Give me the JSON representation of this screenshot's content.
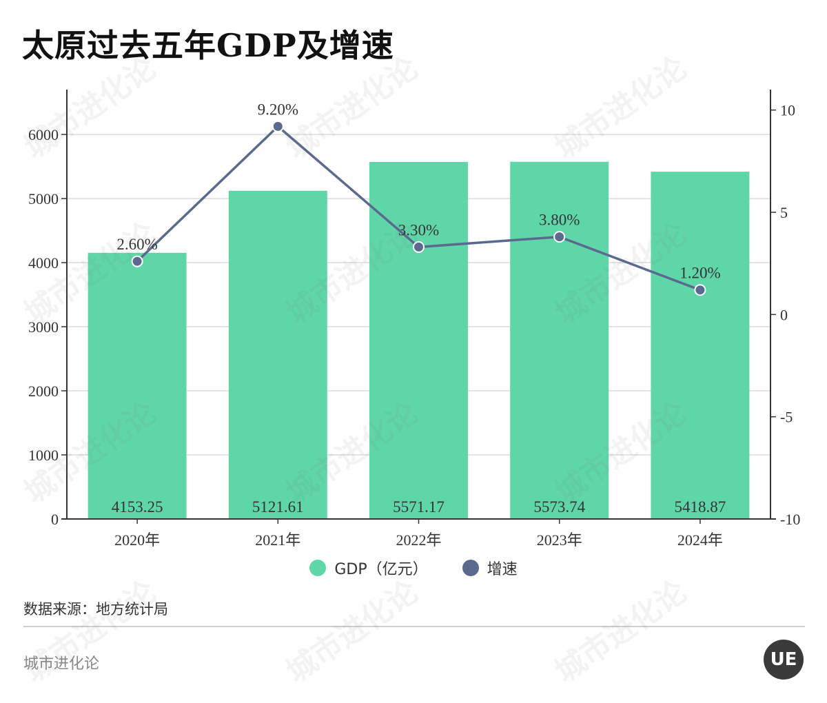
{
  "title": "太原过去五年GDP及增速",
  "chart_data": {
    "type": "bar+line",
    "categories": [
      "2020年",
      "2021年",
      "2022年",
      "2023年",
      "2024年"
    ],
    "series": [
      {
        "name": "GDP（亿元）",
        "type": "bar",
        "axis": "left",
        "values": [
          4153.25,
          5121.61,
          5571.17,
          5573.74,
          5418.87
        ],
        "labels": [
          "4153.25",
          "5121.61",
          "5571.17",
          "5573.74",
          "5418.87"
        ]
      },
      {
        "name": "增速",
        "type": "line",
        "axis": "right",
        "values": [
          2.6,
          9.2,
          3.3,
          3.8,
          1.2
        ],
        "labels": [
          "2.60%",
          "9.20%",
          "3.30%",
          "3.80%",
          "1.20%"
        ]
      }
    ],
    "y_left": {
      "ylim": [
        0,
        6700
      ],
      "ticks": [
        0,
        1000,
        2000,
        3000,
        4000,
        5000,
        6000
      ]
    },
    "y_right": {
      "ylim": [
        -10,
        11
      ],
      "ticks": [
        -10,
        -5,
        0,
        5,
        10
      ]
    },
    "grid": true,
    "legend": "bottom-center"
  },
  "colors": {
    "bar": "#5fd6a8",
    "line": "#5a6a8e"
  },
  "legend": [
    {
      "label": "GDP（亿元）",
      "color": "#5fd6a8"
    },
    {
      "label": "增速",
      "color": "#5a6a8e"
    }
  ],
  "source": "数据来源：地方统计局",
  "brand": "城市进化论",
  "logo_text": "UE"
}
